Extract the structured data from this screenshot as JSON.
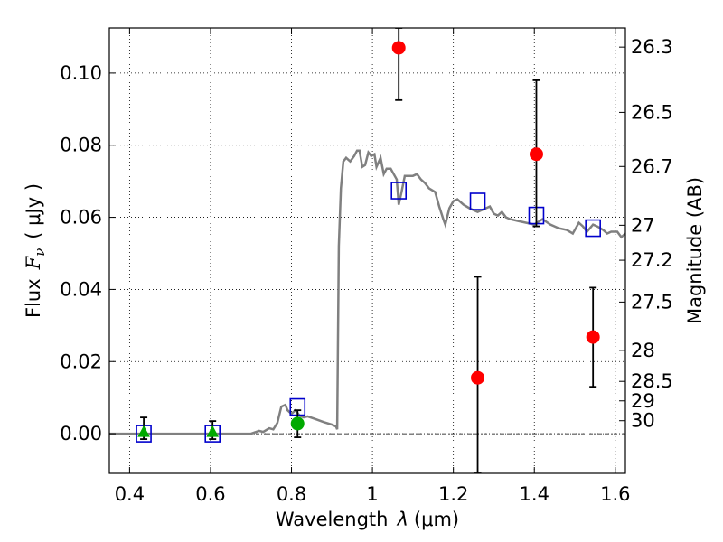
{
  "chart_data": {
    "type": "scatter",
    "xlabel": {
      "prefix": "Wavelength",
      "symbol": "λ",
      "unit": "(μm)"
    },
    "ylabel": {
      "prefix": "Flux",
      "symbol": "F",
      "sub": "ν",
      "unit": "( μJy )"
    },
    "ylabel_right": "Magnitude (AB)",
    "xlim": [
      0.35,
      1.625
    ],
    "ylim": [
      -0.011,
      0.1125
    ],
    "xticks": [
      0.4,
      0.6,
      0.8,
      1.0,
      1.2,
      1.4,
      1.6
    ],
    "xtick_labels": [
      "0.4",
      "0.6",
      "0.8",
      "1",
      "1.2",
      "1.4",
      "1.6"
    ],
    "yticks": [
      0.0,
      0.02,
      0.04,
      0.06,
      0.08,
      0.1
    ],
    "ytick_labels": [
      "0.00",
      "0.02",
      "0.04",
      "0.06",
      "0.08",
      "0.10"
    ],
    "right_ticks": [
      {
        "label": "26.3",
        "flux": 0.1072
      },
      {
        "label": "26.5",
        "flux": 0.0891
      },
      {
        "label": "26.7",
        "flux": 0.0741
      },
      {
        "label": "27",
        "flux": 0.0578
      },
      {
        "label": "27.2",
        "flux": 0.0481
      },
      {
        "label": "27.5",
        "flux": 0.0365
      },
      {
        "label": "28",
        "flux": 0.0231
      },
      {
        "label": "28.5",
        "flux": 0.0145
      },
      {
        "label": "29",
        "flux": 0.0091
      },
      {
        "label": "30",
        "flux": 0.0036
      }
    ],
    "grid": true,
    "zero_line": true,
    "series": [
      {
        "kind": "line",
        "color": "#808080",
        "points": [
          [
            0.35,
            0
          ],
          [
            0.7,
            0
          ],
          [
            0.72,
            0.0008
          ],
          [
            0.73,
            0.0005
          ],
          [
            0.745,
            0.0015
          ],
          [
            0.755,
            0.0012
          ],
          [
            0.765,
            0.003
          ],
          [
            0.775,
            0.0075
          ],
          [
            0.785,
            0.008
          ],
          [
            0.79,
            0.0065
          ],
          [
            0.8,
            0.0055
          ],
          [
            0.81,
            0.0065
          ],
          [
            0.82,
            0.005
          ],
          [
            0.83,
            0.0045
          ],
          [
            0.84,
            0.0048
          ],
          [
            0.86,
            0.004
          ],
          [
            0.88,
            0.0032
          ],
          [
            0.9,
            0.0025
          ],
          [
            0.91,
            0.002
          ],
          [
            0.913,
            0.0012
          ],
          [
            0.917,
            0.052
          ],
          [
            0.922,
            0.068
          ],
          [
            0.928,
            0.0755
          ],
          [
            0.935,
            0.0765
          ],
          [
            0.945,
            0.0755
          ],
          [
            0.955,
            0.077
          ],
          [
            0.962,
            0.0785
          ],
          [
            0.968,
            0.0785
          ],
          [
            0.975,
            0.074
          ],
          [
            0.982,
            0.0745
          ],
          [
            0.99,
            0.078
          ],
          [
            0.997,
            0.077
          ],
          [
            1.005,
            0.0775
          ],
          [
            1.01,
            0.074
          ],
          [
            1.02,
            0.0765
          ],
          [
            1.028,
            0.072
          ],
          [
            1.035,
            0.0735
          ],
          [
            1.045,
            0.0735
          ],
          [
            1.06,
            0.0705
          ],
          [
            1.065,
            0.0635
          ],
          [
            1.072,
            0.067
          ],
          [
            1.08,
            0.0715
          ],
          [
            1.09,
            0.0715
          ],
          [
            1.1,
            0.0715
          ],
          [
            1.11,
            0.072
          ],
          [
            1.12,
            0.0705
          ],
          [
            1.13,
            0.0695
          ],
          [
            1.14,
            0.068
          ],
          [
            1.155,
            0.067
          ],
          [
            1.165,
            0.063
          ],
          [
            1.175,
            0.0595
          ],
          [
            1.18,
            0.058
          ],
          [
            1.19,
            0.0625
          ],
          [
            1.2,
            0.0645
          ],
          [
            1.21,
            0.065
          ],
          [
            1.225,
            0.0635
          ],
          [
            1.24,
            0.0625
          ],
          [
            1.26,
            0.0615
          ],
          [
            1.28,
            0.0625
          ],
          [
            1.29,
            0.063
          ],
          [
            1.3,
            0.061
          ],
          [
            1.31,
            0.0605
          ],
          [
            1.32,
            0.0615
          ],
          [
            1.33,
            0.06
          ],
          [
            1.34,
            0.0595
          ],
          [
            1.36,
            0.059
          ],
          [
            1.38,
            0.0585
          ],
          [
            1.4,
            0.058
          ],
          [
            1.42,
            0.0595
          ],
          [
            1.44,
            0.058
          ],
          [
            1.46,
            0.057
          ],
          [
            1.48,
            0.0565
          ],
          [
            1.495,
            0.0555
          ],
          [
            1.51,
            0.0585
          ],
          [
            1.52,
            0.0575
          ],
          [
            1.53,
            0.056
          ],
          [
            1.545,
            0.058
          ],
          [
            1.555,
            0.0575
          ],
          [
            1.57,
            0.0565
          ],
          [
            1.58,
            0.0555
          ],
          [
            1.59,
            0.056
          ],
          [
            1.605,
            0.056
          ],
          [
            1.615,
            0.0545
          ],
          [
            1.625,
            0.0555
          ]
        ]
      },
      {
        "kind": "squares",
        "color": "#0000cc",
        "points": [
          [
            0.435,
            0.0
          ],
          [
            0.605,
            0.0
          ],
          [
            0.815,
            0.0074
          ],
          [
            1.065,
            0.0674
          ],
          [
            1.26,
            0.0644
          ],
          [
            1.405,
            0.0605
          ],
          [
            1.545,
            0.057
          ]
        ]
      },
      {
        "kind": "errorbars",
        "color": "#000000",
        "points": [
          {
            "x": 0.435,
            "lo": -0.0015,
            "hi": 0.0045
          },
          {
            "x": 0.605,
            "lo": -0.0015,
            "hi": 0.0035
          },
          {
            "x": 0.815,
            "lo": -0.001,
            "hi": 0.0065
          },
          {
            "x": 1.065,
            "lo": 0.0925,
            "hi": 0.1125
          },
          {
            "x": 1.26,
            "lo": -0.011,
            "hi": 0.0435
          },
          {
            "x": 1.405,
            "lo": 0.0575,
            "hi": 0.098
          },
          {
            "x": 1.545,
            "lo": 0.013,
            "hi": 0.0405
          }
        ]
      },
      {
        "kind": "triangles",
        "color": "#00aa00",
        "points": [
          [
            0.435,
            0.0005
          ],
          [
            0.605,
            0.0005
          ]
        ]
      },
      {
        "kind": "circles",
        "color": "#00aa00",
        "points": [
          [
            0.815,
            0.0028
          ]
        ]
      },
      {
        "kind": "circles",
        "color": "#ff0000",
        "points": [
          [
            1.065,
            0.107
          ],
          [
            1.26,
            0.0155
          ],
          [
            1.405,
            0.0775
          ],
          [
            1.545,
            0.0268
          ]
        ]
      }
    ]
  }
}
